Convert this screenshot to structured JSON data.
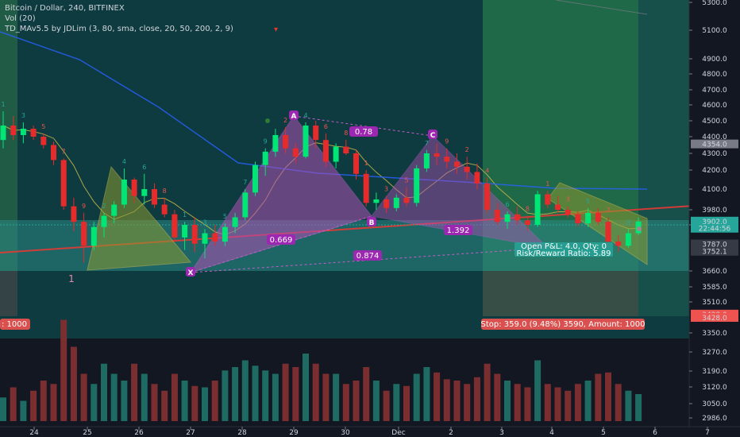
{
  "chart_data": {
    "type": "candlestick",
    "legend": {
      "title": "Bitcoin / Dollar, 240, BITFINEX",
      "volume": "Vol (20)",
      "indicator": "TD_MAv5.5 by JDLim (3, 80, sma, close, 20, 50, 200, 2, 9)"
    },
    "price_ticks": [
      5300.0,
      5100.0,
      4900.0,
      4800.0,
      4700.0,
      4600.0,
      4500.0,
      4400.0,
      4300.0,
      4200.0,
      4100.0,
      3980.0,
      3880.0,
      3660.0,
      3585.0,
      3510.0,
      3350.0,
      3270.0,
      3190.0,
      3120.0,
      3050.0,
      2986.0
    ],
    "price_tick_labels": [
      "5300.0",
      "5100.0",
      "4900.0",
      "4800.0",
      "4700.0",
      "4600.0",
      "4500.0",
      "4400.0",
      "4300.0",
      "4200.0",
      "4100.0",
      "3980.0",
      "3880.0",
      "3660.0",
      "3585.0",
      "3510.0",
      "3350.0",
      "3270.0",
      "3190.0",
      "3120.0",
      "3050.0",
      "2986.0"
    ],
    "price_badges": [
      {
        "text": "4354.0",
        "price": 4354,
        "color": "#787b86"
      },
      {
        "text": "3902.0",
        "price": 3902,
        "color": "#26a69a"
      },
      {
        "text": "22:44:56",
        "price": 3862,
        "color": "#26a69a"
      },
      {
        "text": "3787.0",
        "price": 3787,
        "color": "#363a45"
      },
      {
        "text": "3752.1",
        "price": 3752,
        "color": "#363a45"
      },
      {
        "text": "3428.0",
        "price": 3445,
        "color": "#ef5350"
      },
      {
        "text": "3428.0",
        "price": 3428,
        "color": "#ef5350"
      }
    ],
    "time_labels": [
      "24",
      "25",
      "26",
      "27",
      "28",
      "29",
      "30",
      "Dec",
      "2",
      "3",
      "4",
      "5",
      "6",
      "7"
    ],
    "pattern_points": [
      "1",
      "X",
      "A",
      "B",
      "C"
    ],
    "ratios": [
      "0.78",
      "0.669",
      "0.874",
      "1.392"
    ],
    "position_box": {
      "line1": "Open P&L: 4.0, Qty: 0",
      "line2": "Risk/Reward Ratio: 5.89",
      "stop": "Stop: 359.0 (9.48%) 3590, Amount: 1000",
      "left_amount": ": 1000"
    },
    "candles": [
      [
        4380,
        4560,
        4330,
        4470
      ],
      [
        4470,
        4530,
        4380,
        4410
      ],
      [
        4410,
        4490,
        4360,
        4450
      ],
      [
        4450,
        4470,
        4380,
        4400
      ],
      [
        4400,
        4420,
        4330,
        4350
      ],
      [
        4350,
        4370,
        4230,
        4260
      ],
      [
        4260,
        4270,
        3980,
        4000
      ],
      [
        4000,
        4050,
        3850,
        3900
      ],
      [
        3900,
        3960,
        3700,
        3780
      ],
      [
        3780,
        3900,
        3760,
        3870
      ],
      [
        3870,
        3960,
        3820,
        3940
      ],
      [
        3940,
        4030,
        3890,
        4010
      ],
      [
        4010,
        4210,
        3990,
        4150
      ],
      [
        4150,
        4160,
        4020,
        4060
      ],
      [
        4060,
        4180,
        4010,
        4100
      ],
      [
        4100,
        4130,
        3990,
        4010
      ],
      [
        4010,
        4050,
        3930,
        3950
      ],
      [
        3950,
        3980,
        3800,
        3820
      ],
      [
        3820,
        3900,
        3760,
        3880
      ],
      [
        3880,
        3930,
        3750,
        3790
      ],
      [
        3790,
        3860,
        3720,
        3840
      ],
      [
        3840,
        3880,
        3780,
        3800
      ],
      [
        3800,
        3890,
        3780,
        3870
      ],
      [
        3870,
        3960,
        3840,
        3930
      ],
      [
        3930,
        4100,
        3910,
        4080
      ],
      [
        4080,
        4250,
        4060,
        4230
      ],
      [
        4230,
        4330,
        4170,
        4310
      ],
      [
        4310,
        4450,
        4280,
        4410
      ],
      [
        4410,
        4460,
        4300,
        4330
      ],
      [
        4330,
        4360,
        4240,
        4280
      ],
      [
        4280,
        4490,
        4270,
        4470
      ],
      [
        4470,
        4500,
        4330,
        4380
      ],
      [
        4380,
        4420,
        4220,
        4250
      ],
      [
        4250,
        4360,
        4210,
        4340
      ],
      [
        4340,
        4380,
        4290,
        4300
      ],
      [
        4300,
        4320,
        4150,
        4180
      ],
      [
        4180,
        4200,
        4000,
        4020
      ],
      [
        4020,
        4080,
        3980,
        4040
      ],
      [
        4040,
        4060,
        3960,
        3990
      ],
      [
        3990,
        4070,
        3970,
        4050
      ],
      [
        4050,
        4110,
        4000,
        4020
      ],
      [
        4020,
        4230,
        4000,
        4210
      ],
      [
        4210,
        4320,
        4190,
        4300
      ],
      [
        4300,
        4360,
        4230,
        4280
      ],
      [
        4280,
        4330,
        4210,
        4250
      ],
      [
        4250,
        4300,
        4180,
        4220
      ],
      [
        4220,
        4280,
        4150,
        4190
      ],
      [
        4190,
        4240,
        4100,
        4130
      ],
      [
        4130,
        4160,
        3960,
        3980
      ],
      [
        3980,
        4020,
        3880,
        3900
      ],
      [
        3900,
        3970,
        3860,
        3950
      ],
      [
        3950,
        4000,
        3880,
        3910
      ],
      [
        3910,
        3940,
        3850,
        3880
      ],
      [
        3880,
        4090,
        3870,
        4070
      ],
      [
        4070,
        4090,
        3990,
        4010
      ],
      [
        4010,
        4060,
        3960,
        3980
      ],
      [
        3980,
        4000,
        3930,
        3950
      ],
      [
        3950,
        3970,
        3870,
        3890
      ],
      [
        3890,
        3990,
        3870,
        3960
      ],
      [
        3960,
        3990,
        3880,
        3900
      ],
      [
        3900,
        3930,
        3770,
        3800
      ],
      [
        3800,
        3830,
        3750,
        3780
      ],
      [
        3780,
        3860,
        3770,
        3840
      ],
      [
        3840,
        3930,
        3830,
        3902
      ]
    ],
    "volumes": [
      35,
      50,
      30,
      45,
      60,
      55,
      150,
      110,
      70,
      55,
      85,
      70,
      60,
      85,
      70,
      55,
      45,
      70,
      60,
      52,
      50,
      60,
      75,
      80,
      90,
      82,
      75,
      70,
      85,
      80,
      100,
      85,
      70,
      70,
      55,
      60,
      80,
      60,
      45,
      55,
      52,
      70,
      80,
      72,
      62,
      60,
      55,
      65,
      85,
      70,
      60,
      55,
      50,
      90,
      55,
      50,
      45,
      55,
      60,
      70,
      72,
      55,
      45,
      40
    ],
    "colors": {
      "up": "#00e676",
      "down": "#e52b2b",
      "pattern": "#9c27b0",
      "ma_fast": "#c9b84a",
      "ma_slow": "#2962ff",
      "trend": "#e53935"
    }
  }
}
